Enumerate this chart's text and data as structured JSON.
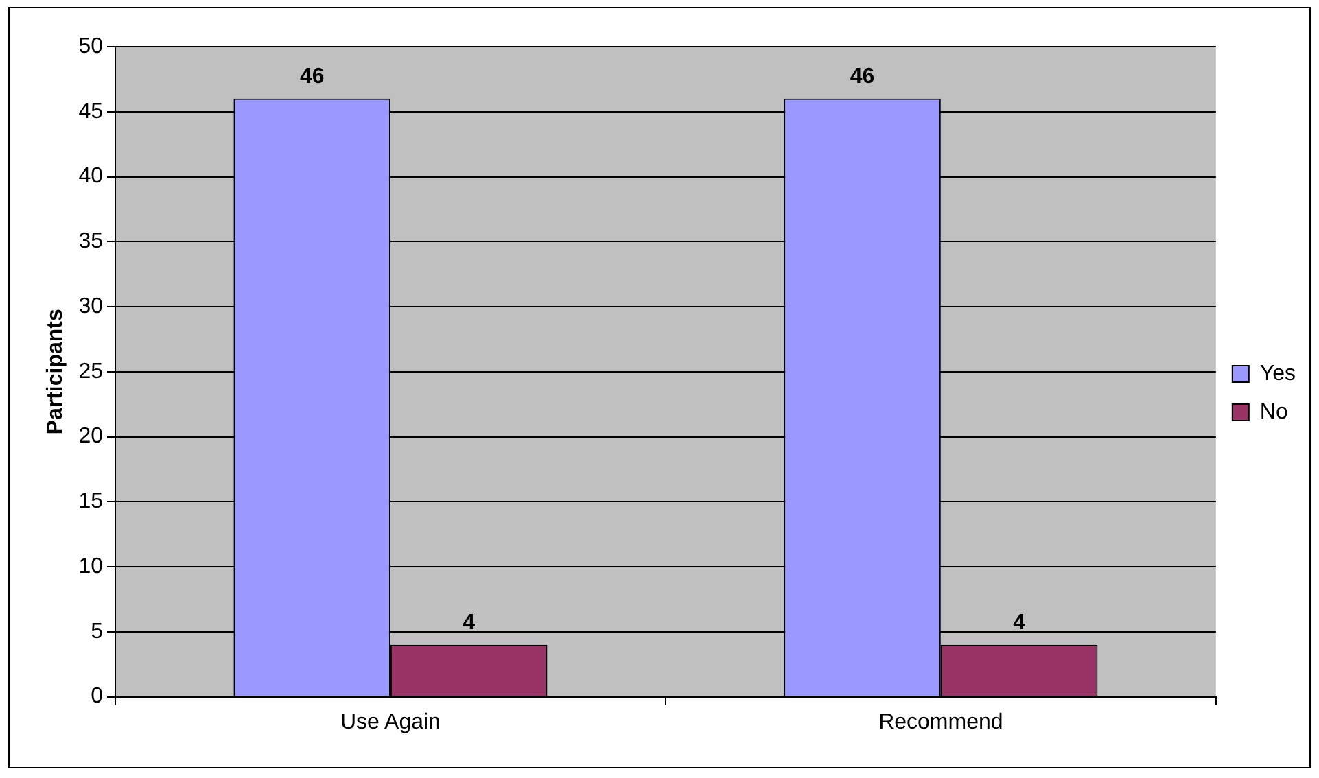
{
  "chart_data": {
    "type": "bar",
    "ylabel": "Participants",
    "categories": [
      "Use Again",
      "Recommend"
    ],
    "series": [
      {
        "name": "Yes",
        "color": "#9999ff",
        "values": [
          46,
          46
        ]
      },
      {
        "name": "No",
        "color": "#993366",
        "values": [
          4,
          4
        ]
      }
    ],
    "ylim": [
      0,
      50
    ],
    "yticks": [
      0,
      5,
      10,
      15,
      20,
      25,
      30,
      35,
      40,
      45,
      50
    ],
    "grid": "y",
    "legend": "right",
    "data_labels": true
  }
}
